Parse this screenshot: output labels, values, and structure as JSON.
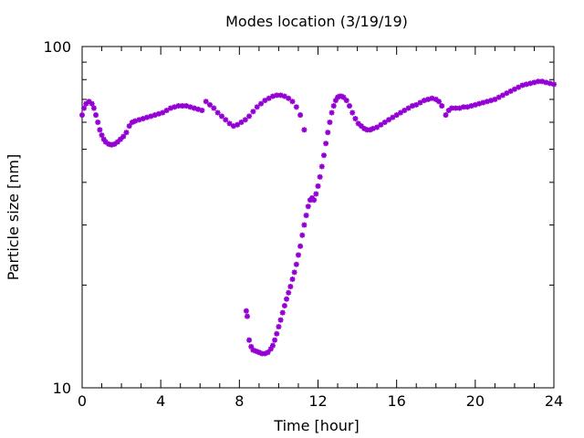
{
  "chart_data": {
    "type": "scatter",
    "title": "Modes location (3/19/19)",
    "xlabel": "Time [hour]",
    "ylabel": "Particle size [nm]",
    "xlim": [
      0,
      24
    ],
    "ylim": [
      10,
      100
    ],
    "yscale": "log",
    "xticks": [
      0,
      4,
      8,
      12,
      16,
      20,
      24
    ],
    "yticks": [
      10,
      100
    ],
    "grid": false,
    "legend": "none",
    "marker_color": "#9400d3",
    "series": [
      {
        "points": [
          [
            0.0,
            63
          ],
          [
            0.1,
            66
          ],
          [
            0.2,
            68
          ],
          [
            0.35,
            69
          ],
          [
            0.5,
            68
          ],
          [
            0.6,
            66
          ],
          [
            0.7,
            63
          ],
          [
            0.8,
            60
          ],
          [
            0.9,
            57
          ],
          [
            1.0,
            55
          ],
          [
            1.1,
            53.5
          ],
          [
            1.2,
            52.5
          ],
          [
            1.35,
            51.8
          ],
          [
            1.5,
            51.5
          ],
          [
            1.65,
            51.8
          ],
          [
            1.8,
            52.5
          ],
          [
            1.95,
            53.5
          ],
          [
            2.1,
            54.5
          ],
          [
            2.25,
            56
          ],
          [
            2.4,
            58.5
          ],
          [
            2.55,
            60
          ],
          [
            2.7,
            60.5
          ],
          [
            2.9,
            61
          ],
          [
            3.1,
            61.5
          ],
          [
            3.3,
            62
          ],
          [
            3.5,
            62.5
          ],
          [
            3.7,
            63
          ],
          [
            3.9,
            63.5
          ],
          [
            4.1,
            64
          ],
          [
            4.3,
            65
          ],
          [
            4.5,
            66
          ],
          [
            4.7,
            66.5
          ],
          [
            4.9,
            67
          ],
          [
            5.1,
            67
          ],
          [
            5.3,
            67
          ],
          [
            5.5,
            66.5
          ],
          [
            5.7,
            66
          ],
          [
            5.9,
            65.5
          ],
          [
            6.1,
            65
          ],
          [
            6.3,
            69
          ],
          [
            6.5,
            67.5
          ],
          [
            6.7,
            66
          ],
          [
            6.9,
            64
          ],
          [
            7.1,
            62.5
          ],
          [
            7.3,
            61
          ],
          [
            7.5,
            59.5
          ],
          [
            7.7,
            58.5
          ],
          [
            7.9,
            59
          ],
          [
            8.1,
            60
          ],
          [
            8.3,
            61
          ],
          [
            8.5,
            62.5
          ],
          [
            8.7,
            64.5
          ],
          [
            8.9,
            66.5
          ],
          [
            9.1,
            68
          ],
          [
            9.3,
            69.5
          ],
          [
            9.5,
            70.5
          ],
          [
            9.7,
            71.5
          ],
          [
            9.9,
            72
          ],
          [
            10.1,
            72
          ],
          [
            10.3,
            71.5
          ],
          [
            10.5,
            70.5
          ],
          [
            10.7,
            69
          ],
          [
            10.9,
            66.5
          ],
          [
            11.1,
            63
          ],
          [
            11.3,
            57
          ],
          [
            8.35,
            16.8
          ],
          [
            8.4,
            16.2
          ],
          [
            8.5,
            13.8
          ],
          [
            8.6,
            13.2
          ],
          [
            8.7,
            12.9
          ],
          [
            8.85,
            12.8
          ],
          [
            9.0,
            12.7
          ],
          [
            9.15,
            12.6
          ],
          [
            9.3,
            12.6
          ],
          [
            9.45,
            12.7
          ],
          [
            9.6,
            13.0
          ],
          [
            9.7,
            13.3
          ],
          [
            9.8,
            13.8
          ],
          [
            9.9,
            14.4
          ],
          [
            10.0,
            15.1
          ],
          [
            10.1,
            15.8
          ],
          [
            10.2,
            16.6
          ],
          [
            10.3,
            17.4
          ],
          [
            10.4,
            18.2
          ],
          [
            10.5,
            19.0
          ],
          [
            10.6,
            19.8
          ],
          [
            10.7,
            20.8
          ],
          [
            10.8,
            21.8
          ],
          [
            10.9,
            23.0
          ],
          [
            11.0,
            24.5
          ],
          [
            11.1,
            26.0
          ],
          [
            11.2,
            28.0
          ],
          [
            11.3,
            30.0
          ],
          [
            11.4,
            32.0
          ],
          [
            11.5,
            34.0
          ],
          [
            11.6,
            35.5
          ],
          [
            11.7,
            36.0
          ],
          [
            11.8,
            35.5
          ],
          [
            11.9,
            37.0
          ],
          [
            12.0,
            39.0
          ],
          [
            12.1,
            41.5
          ],
          [
            12.2,
            44.5
          ],
          [
            12.3,
            48.0
          ],
          [
            12.4,
            52.0
          ],
          [
            12.5,
            56.0
          ],
          [
            12.6,
            60.0
          ],
          [
            12.7,
            64.0
          ],
          [
            12.8,
            67.0
          ],
          [
            12.9,
            69.5
          ],
          [
            13.0,
            71.0
          ],
          [
            13.1,
            71.5
          ],
          [
            13.2,
            71.5
          ],
          [
            13.3,
            71.0
          ],
          [
            13.45,
            69.5
          ],
          [
            13.6,
            67.0
          ],
          [
            13.75,
            64.0
          ],
          [
            13.9,
            61.5
          ],
          [
            14.05,
            59.5
          ],
          [
            14.2,
            58.5
          ],
          [
            14.35,
            57.5
          ],
          [
            14.5,
            57.0
          ],
          [
            14.65,
            57.0
          ],
          [
            14.8,
            57.5
          ],
          [
            15.0,
            58.0
          ],
          [
            15.2,
            59.0
          ],
          [
            15.4,
            60.0
          ],
          [
            15.6,
            61.0
          ],
          [
            15.8,
            62.0
          ],
          [
            16.0,
            63.0
          ],
          [
            16.2,
            64.0
          ],
          [
            16.4,
            65.0
          ],
          [
            16.6,
            66.0
          ],
          [
            16.8,
            67.0
          ],
          [
            17.0,
            67.5
          ],
          [
            17.2,
            68.5
          ],
          [
            17.4,
            69.5
          ],
          [
            17.6,
            70.0
          ],
          [
            17.8,
            70.5
          ],
          [
            18.0,
            70.0
          ],
          [
            18.15,
            69.0
          ],
          [
            18.3,
            67.0
          ],
          [
            18.5,
            63.0
          ],
          [
            18.65,
            65.0
          ],
          [
            18.8,
            66.0
          ],
          [
            19.0,
            66.0
          ],
          [
            19.2,
            66.0
          ],
          [
            19.4,
            66.5
          ],
          [
            19.6,
            66.5
          ],
          [
            19.8,
            67.0
          ],
          [
            20.0,
            67.5
          ],
          [
            20.2,
            68.0
          ],
          [
            20.4,
            68.5
          ],
          [
            20.6,
            69.0
          ],
          [
            20.8,
            69.5
          ],
          [
            21.0,
            70.0
          ],
          [
            21.2,
            71.0
          ],
          [
            21.4,
            72.0
          ],
          [
            21.6,
            73.0
          ],
          [
            21.8,
            74.0
          ],
          [
            22.0,
            75.0
          ],
          [
            22.2,
            76.0
          ],
          [
            22.4,
            77.0
          ],
          [
            22.6,
            77.5
          ],
          [
            22.8,
            78.0
          ],
          [
            23.0,
            78.5
          ],
          [
            23.2,
            79.0
          ],
          [
            23.4,
            79.0
          ],
          [
            23.6,
            78.5
          ],
          [
            23.8,
            78.0
          ],
          [
            24.0,
            77.5
          ]
        ]
      }
    ]
  }
}
